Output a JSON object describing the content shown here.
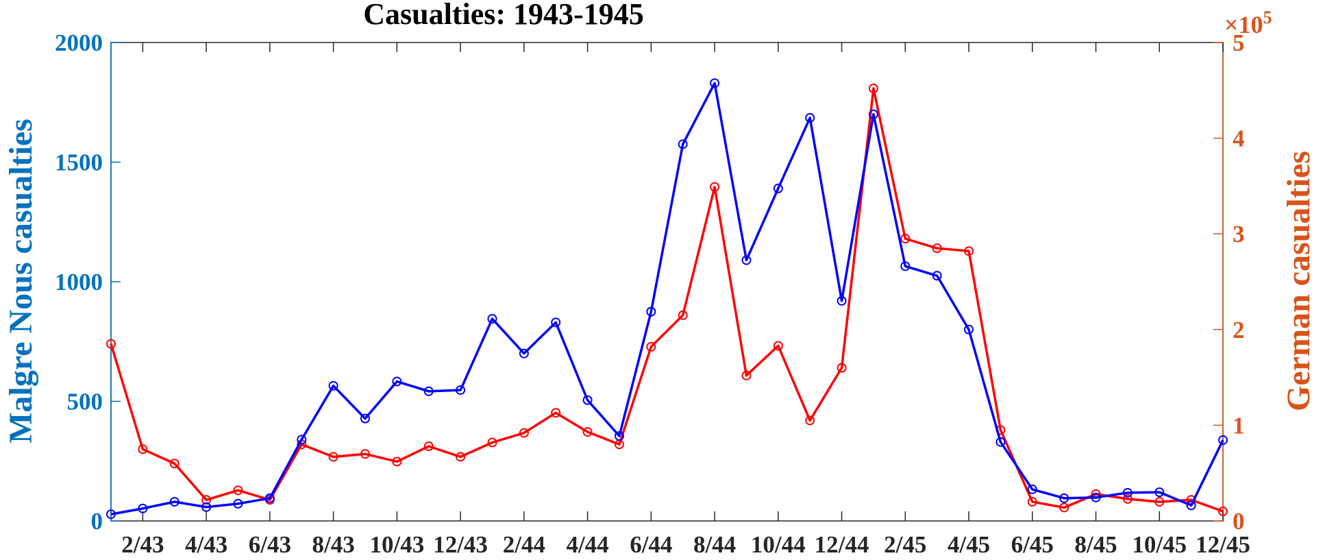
{
  "chart_data": {
    "type": "line",
    "title": "Casualties: 1943-1945",
    "categories": [
      "1/43",
      "2/43",
      "3/43",
      "4/43",
      "5/43",
      "6/43",
      "7/43",
      "8/43",
      "9/43",
      "10/43",
      "11/43",
      "12/43",
      "1/44",
      "2/44",
      "3/44",
      "4/44",
      "5/44",
      "6/44",
      "7/44",
      "8/44",
      "9/44",
      "10/44",
      "11/44",
      "12/44",
      "1/45",
      "2/45",
      "3/45",
      "4/45",
      "5/45",
      "6/45",
      "7/45",
      "8/45",
      "9/45",
      "10/45",
      "11/45",
      "12/45"
    ],
    "x_tick_labels": [
      "2/43",
      "4/43",
      "6/43",
      "8/43",
      "10/43",
      "12/43",
      "2/44",
      "4/44",
      "6/44",
      "8/44",
      "10/44",
      "12/44",
      "2/45",
      "4/45",
      "6/45",
      "8/45",
      "10/45",
      "12/45"
    ],
    "left_axis": {
      "ylabel": "Malgre Nous casualties",
      "ylim": [
        0,
        2000
      ],
      "ticks": [
        "0",
        "500",
        "1000",
        "1500",
        "2000"
      ],
      "color": "#0072BD"
    },
    "right_axis": {
      "ylabel": "German casualties",
      "ylim": [
        0,
        5
      ],
      "ticks": [
        "0",
        "1",
        "2",
        "3",
        "4",
        "5"
      ],
      "exponent_base": "×10",
      "exponent_power": "5",
      "color": "#D95319"
    },
    "series": [
      {
        "axis": "left",
        "color": "#0000FF",
        "values": [
          28,
          52,
          80,
          58,
          72,
          95,
          340,
          565,
          428,
          583,
          542,
          547,
          845,
          700,
          830,
          505,
          355,
          875,
          1575,
          1830,
          1090,
          1390,
          1685,
          920,
          1700,
          1065,
          1025,
          800,
          330,
          132,
          95,
          98,
          118,
          120,
          65,
          338
        ]
      },
      {
        "axis": "right",
        "color": "#FF0000",
        "values": [
          1.85,
          0.75,
          0.6,
          0.22,
          0.32,
          0.22,
          0.8,
          0.67,
          0.7,
          0.62,
          0.78,
          0.67,
          0.82,
          0.92,
          1.13,
          0.93,
          0.8,
          1.82,
          2.15,
          3.49,
          1.52,
          1.83,
          1.05,
          1.6,
          4.52,
          2.95,
          2.85,
          2.82,
          0.95,
          0.2,
          0.14,
          0.28,
          0.23,
          0.2,
          0.22,
          0.1
        ]
      }
    ],
    "grid": false,
    "legend": "none"
  }
}
